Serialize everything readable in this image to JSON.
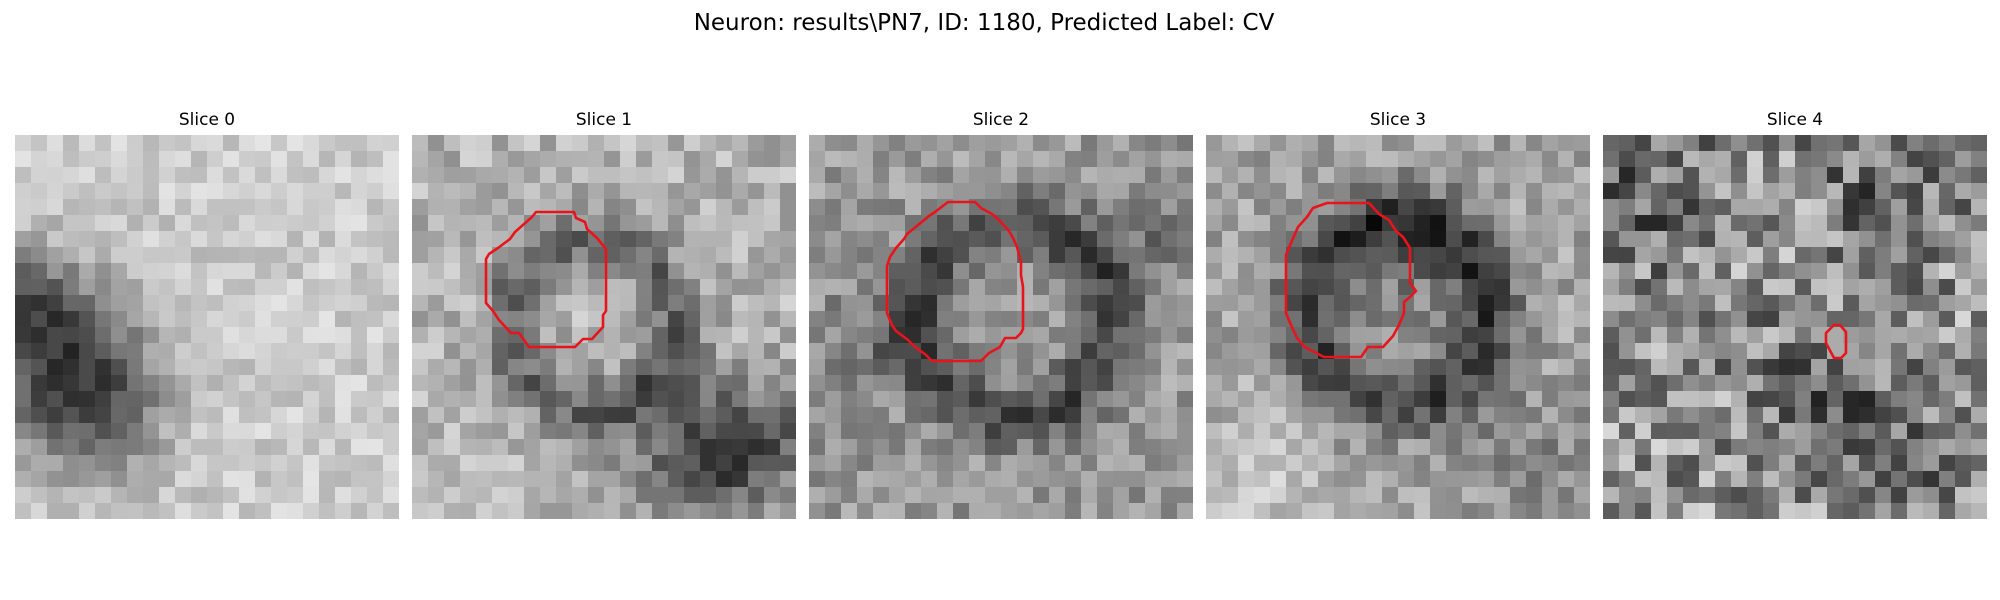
{
  "figure": {
    "title": "Neuron: results\\PN7, ID: 1180, Predicted Label: CV",
    "outline_color": "#e8141c",
    "colormap": "gray"
  },
  "panels": [
    {
      "title": "Slice 0",
      "has_outline": false
    },
    {
      "title": "Slice 1",
      "has_outline": true
    },
    {
      "title": "Slice 2",
      "has_outline": true
    },
    {
      "title": "Slice 3",
      "has_outline": true
    },
    {
      "title": "Slice 4",
      "has_outline": true
    }
  ]
}
